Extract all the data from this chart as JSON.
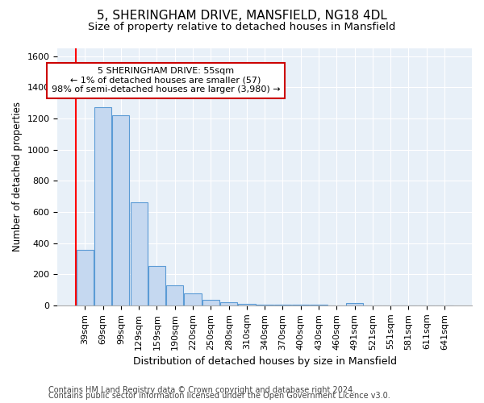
{
  "title": "5, SHERINGHAM DRIVE, MANSFIELD, NG18 4DL",
  "subtitle": "Size of property relative to detached houses in Mansfield",
  "xlabel": "Distribution of detached houses by size in Mansfield",
  "ylabel": "Number of detached properties",
  "categories": [
    "39sqm",
    "69sqm",
    "99sqm",
    "129sqm",
    "159sqm",
    "190sqm",
    "220sqm",
    "250sqm",
    "280sqm",
    "310sqm",
    "340sqm",
    "370sqm",
    "400sqm",
    "430sqm",
    "460sqm",
    "491sqm",
    "521sqm",
    "551sqm",
    "581sqm",
    "611sqm",
    "641sqm"
  ],
  "values": [
    355,
    1270,
    1220,
    660,
    255,
    130,
    75,
    35,
    20,
    12,
    7,
    5,
    4,
    3,
    0,
    15,
    2,
    1,
    0,
    0,
    0
  ],
  "bar_color": "#c5d8f0",
  "bar_edge_color": "#5b9bd5",
  "annotation_line1": "5 SHERINGHAM DRIVE: 55sqm",
  "annotation_line2": "← 1% of detached houses are smaller (57)",
  "annotation_line3": "98% of semi-detached houses are larger (3,980) →",
  "annotation_box_color": "#ffffff",
  "annotation_box_edge": "#cc0000",
  "red_line_x": -0.5,
  "ylim": [
    0,
    1650
  ],
  "yticks": [
    0,
    200,
    400,
    600,
    800,
    1000,
    1200,
    1400,
    1600
  ],
  "background_color": "#ffffff",
  "plot_bg_color": "#e8f0f8",
  "grid_color": "#ffffff",
  "title_fontsize": 11,
  "subtitle_fontsize": 9.5,
  "ylabel_fontsize": 8.5,
  "xlabel_fontsize": 9,
  "tick_fontsize": 8,
  "footnote_fontsize": 7,
  "footnote1": "Contains HM Land Registry data © Crown copyright and database right 2024.",
  "footnote2": "Contains public sector information licensed under the Open Government Licence v3.0."
}
